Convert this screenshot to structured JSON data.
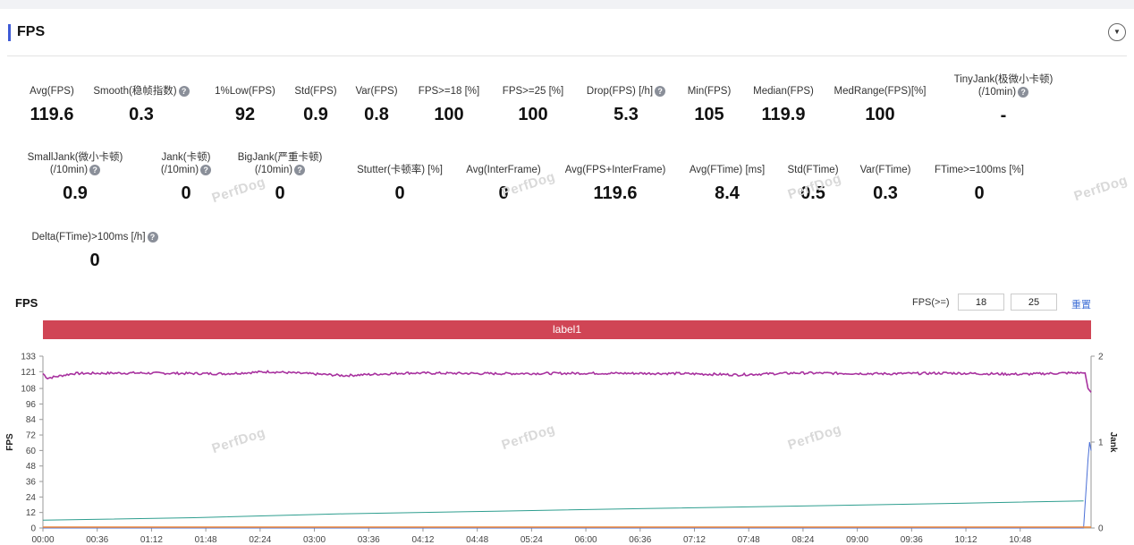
{
  "header": {
    "title": "FPS",
    "collapse_icon": "triangle-down-icon"
  },
  "metrics_row1": [
    {
      "label": "Avg(FPS)",
      "value": "119.6",
      "help": false
    },
    {
      "label": "Smooth(稳帧指数)",
      "value": "0.3",
      "help": true
    },
    {
      "label": "1%Low(FPS)",
      "value": "92",
      "help": false
    },
    {
      "label": "Std(FPS)",
      "value": "0.9",
      "help": false
    },
    {
      "label": "Var(FPS)",
      "value": "0.8",
      "help": false
    },
    {
      "label": "FPS>=18 [%]",
      "value": "100",
      "help": false
    },
    {
      "label": "FPS>=25 [%]",
      "value": "100",
      "help": false
    },
    {
      "label": "Drop(FPS) [/h]",
      "value": "5.3",
      "help": true
    },
    {
      "label": "Min(FPS)",
      "value": "105",
      "help": false
    },
    {
      "label": "Median(FPS)",
      "value": "119.9",
      "help": false
    },
    {
      "label": "MedRange(FPS)[%]",
      "value": "100",
      "help": false
    },
    {
      "label": "TinyJank(极微小卡顿)",
      "label2": "(/10min)",
      "value": "-",
      "help": true
    }
  ],
  "metrics_row2": [
    {
      "label": "SmallJank(微小卡顿)",
      "label2": "(/10min)",
      "value": "0.9",
      "help": true
    },
    {
      "label": "Jank(卡顿)",
      "label2": "(/10min)",
      "value": "0",
      "help": true
    },
    {
      "label": "BigJank(严重卡顿)",
      "label2": "(/10min)",
      "value": "0",
      "help": true
    },
    {
      "label": "Stutter(卡顿率) [%]",
      "value": "0",
      "help": false
    },
    {
      "label": "Avg(InterFrame)",
      "value": "0",
      "help": false
    },
    {
      "label": "Avg(FPS+InterFrame)",
      "value": "119.6",
      "help": false
    },
    {
      "label": "Avg(FTime) [ms]",
      "value": "8.4",
      "help": false
    },
    {
      "label": "Std(FTime)",
      "value": "0.5",
      "help": false
    },
    {
      "label": "Var(FTime)",
      "value": "0.3",
      "help": false
    },
    {
      "label": "FTime>=100ms [%]",
      "value": "0",
      "help": false
    }
  ],
  "metrics_row3": [
    {
      "label": "Delta(FTime)>100ms [/h]",
      "value": "0",
      "help": true
    }
  ],
  "watermark": "PerfDog",
  "chart_section": {
    "title": "FPS",
    "filter_label": "FPS(>=)",
    "threshold_1": "18",
    "threshold_2": "25",
    "reset_label": "重置",
    "label_bar": "label1"
  },
  "colors": {
    "fps": "#a8329f",
    "trend": "#2e9e8f",
    "jank": "#f08a3c",
    "label_bar": "#d04555",
    "accent": "#3f5bd6"
  },
  "chart_data": {
    "type": "line",
    "ylabel": "FPS",
    "y2label": "Jank",
    "ylim": [
      0,
      133
    ],
    "yticks": [
      0,
      12,
      24,
      36,
      48,
      60,
      72,
      84,
      96,
      108,
      121,
      133
    ],
    "y2lim": [
      0,
      2
    ],
    "y2ticks": [
      0,
      1,
      2
    ],
    "xticks": [
      "00:00",
      "00:36",
      "01:12",
      "01:48",
      "02:24",
      "03:00",
      "03:36",
      "04:12",
      "04:48",
      "05:24",
      "06:00",
      "06:36",
      "07:12",
      "07:48",
      "08:24",
      "09:00",
      "09:36",
      "10:12",
      "10:48"
    ],
    "duration_seconds": 695,
    "series": [
      {
        "name": "FPS",
        "axis": "left",
        "points": [
          [
            0,
            119.5
          ],
          [
            3,
            116
          ],
          [
            20,
            119.6
          ],
          [
            60,
            120
          ],
          [
            120,
            119.4
          ],
          [
            150,
            121
          ],
          [
            200,
            118
          ],
          [
            240,
            120
          ],
          [
            300,
            119.5
          ],
          [
            360,
            119.8
          ],
          [
            420,
            119.6
          ],
          [
            460,
            118.6
          ],
          [
            500,
            120
          ],
          [
            560,
            119.4
          ],
          [
            600,
            119.9
          ],
          [
            648,
            119
          ],
          [
            680,
            120
          ],
          [
            691,
            120
          ],
          [
            693,
            108
          ],
          [
            695,
            105
          ]
        ]
      },
      {
        "name": "Jank",
        "axis": "right",
        "points": [
          [
            0,
            0
          ],
          [
            690,
            0
          ],
          [
            693,
            0.8
          ],
          [
            694,
            1.0
          ],
          [
            695,
            0.9
          ]
        ]
      },
      {
        "name": "",
        "axis": "left",
        "points": [
          [
            0,
            6
          ],
          [
            100,
            8
          ],
          [
            200,
            11
          ],
          [
            300,
            13
          ],
          [
            400,
            15
          ],
          [
            500,
            17
          ],
          [
            600,
            19
          ],
          [
            690,
            21
          ]
        ]
      }
    ]
  }
}
